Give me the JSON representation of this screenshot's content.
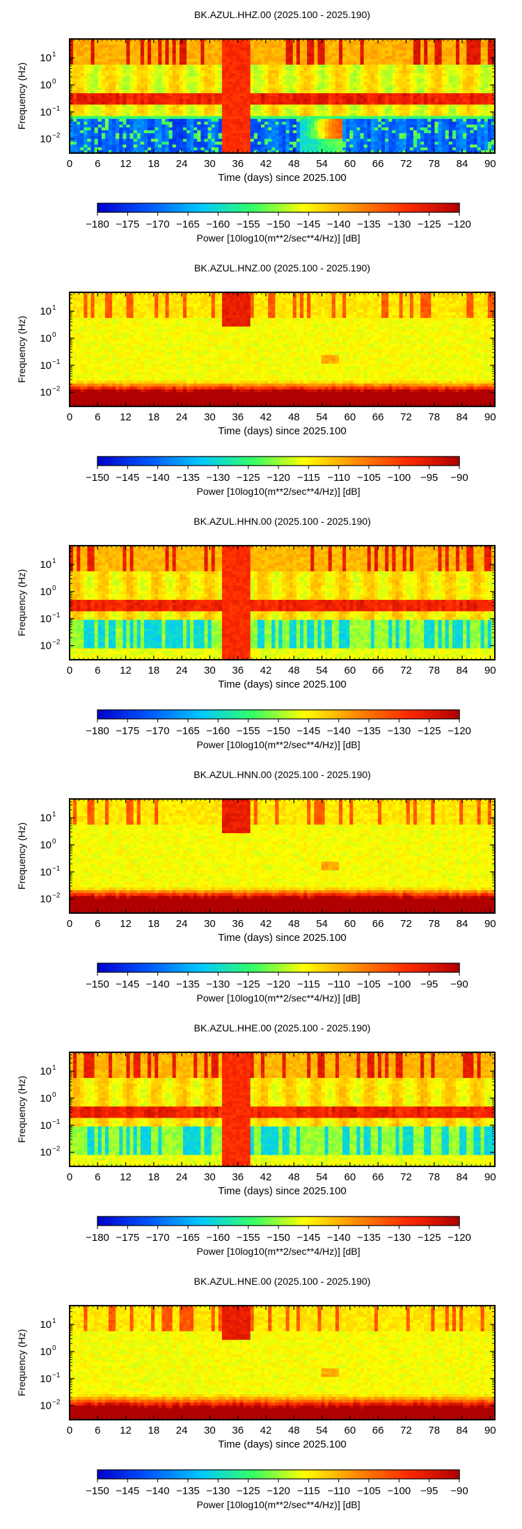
{
  "panel_defaults": {
    "ylabel": "Frequency (Hz)",
    "xlabel": "Time (days) since 2025.100",
    "x_ticks": [
      "0",
      "6",
      "12",
      "18",
      "24",
      "30",
      "36",
      "42",
      "48",
      "54",
      "60",
      "66",
      "72",
      "78",
      "84",
      "90"
    ],
    "y_ticks": [
      {
        "base": "10",
        "exp": "1"
      },
      {
        "base": "10",
        "exp": "0"
      },
      {
        "base": "10",
        "exp": "−1"
      },
      {
        "base": "10",
        "exp": "−2"
      }
    ],
    "colorbar_label": "Power [10log10(m**2/sec**4/Hz)] [dB]"
  },
  "colormap": [
    "#0000cc",
    "#0057ff",
    "#00c8ff",
    "#33ff66",
    "#ffff00",
    "#ff8c00",
    "#ff2a00",
    "#b00000"
  ],
  "chart_data": [
    {
      "type": "heatmap",
      "title": "BK.AZUL.HHZ.00 (2025.100 - 2025.190)",
      "channel": "HHZ",
      "xlabel": "Time (days) since 2025.100",
      "ylabel": "Frequency (Hz)",
      "xlim": [
        0,
        91
      ],
      "ylim_hz": [
        0.003,
        50
      ],
      "yscale": "log",
      "colorbar": {
        "ticks": [
          "−180",
          "−175",
          "−170",
          "−165",
          "−160",
          "−155",
          "−150",
          "−145",
          "−140",
          "−135",
          "−130",
          "−125",
          "−120"
        ],
        "range_db": [
          -180,
          -120
        ]
      },
      "data_gap_days": [
        32.5,
        38.5
      ]
    },
    {
      "type": "heatmap",
      "title": "BK.AZUL.HNZ.00 (2025.100 - 2025.190)",
      "channel": "HNZ",
      "xlabel": "Time (days) since 2025.100",
      "ylabel": "Frequency (Hz)",
      "xlim": [
        0,
        91
      ],
      "ylim_hz": [
        0.003,
        50
      ],
      "yscale": "log",
      "colorbar": {
        "ticks": [
          "−150",
          "−145",
          "−140",
          "−135",
          "−130",
          "−125",
          "−120",
          "−115",
          "−110",
          "−105",
          "−100",
          "−95",
          "−90"
        ],
        "range_db": [
          -150,
          -90
        ]
      },
      "data_gap_days": [
        32.5,
        38.5
      ]
    },
    {
      "type": "heatmap",
      "title": "BK.AZUL.HHN.00 (2025.100 - 2025.190)",
      "channel": "HHN",
      "xlabel": "Time (days) since 2025.100",
      "ylabel": "Frequency (Hz)",
      "xlim": [
        0,
        91
      ],
      "ylim_hz": [
        0.003,
        50
      ],
      "yscale": "log",
      "colorbar": {
        "ticks": [
          "−180",
          "−175",
          "−170",
          "−165",
          "−160",
          "−155",
          "−150",
          "−145",
          "−140",
          "−135",
          "−130",
          "−125",
          "−120"
        ],
        "range_db": [
          -180,
          -120
        ]
      },
      "data_gap_days": [
        32.5,
        38.5
      ]
    },
    {
      "type": "heatmap",
      "title": "BK.AZUL.HNN.00 (2025.100 - 2025.190)",
      "channel": "HNN",
      "xlabel": "Time (days) since 2025.100",
      "ylabel": "Frequency (Hz)",
      "xlim": [
        0,
        91
      ],
      "ylim_hz": [
        0.003,
        50
      ],
      "yscale": "log",
      "colorbar": {
        "ticks": [
          "−150",
          "−145",
          "−140",
          "−135",
          "−130",
          "−125",
          "−120",
          "−115",
          "−110",
          "−105",
          "−100",
          "−95",
          "−90"
        ],
        "range_db": [
          -150,
          -90
        ]
      },
      "data_gap_days": [
        32.5,
        38.5
      ]
    },
    {
      "type": "heatmap",
      "title": "BK.AZUL.HHE.00 (2025.100 - 2025.190)",
      "channel": "HHE",
      "xlabel": "Time (days) since 2025.100",
      "ylabel": "Frequency (Hz)",
      "xlim": [
        0,
        91
      ],
      "ylim_hz": [
        0.003,
        50
      ],
      "yscale": "log",
      "colorbar": {
        "ticks": [
          "−180",
          "−175",
          "−170",
          "−165",
          "−160",
          "−155",
          "−150",
          "−145",
          "−140",
          "−135",
          "−130",
          "−125",
          "−120"
        ],
        "range_db": [
          -180,
          -120
        ]
      },
      "data_gap_days": [
        32.5,
        38.5
      ]
    },
    {
      "type": "heatmap",
      "title": "BK.AZUL.HNE.00 (2025.100 - 2025.190)",
      "channel": "HNE",
      "xlabel": "Time (days) since 2025.100",
      "ylabel": "Frequency (Hz)",
      "xlim": [
        0,
        91
      ],
      "ylim_hz": [
        0.003,
        50
      ],
      "yscale": "log",
      "colorbar": {
        "ticks": [
          "−150",
          "−145",
          "−140",
          "−135",
          "−130",
          "−125",
          "−120",
          "−115",
          "−110",
          "−105",
          "−100",
          "−95",
          "−90"
        ],
        "range_db": [
          -150,
          -90
        ]
      },
      "data_gap_days": [
        32.5,
        38.5
      ]
    }
  ]
}
